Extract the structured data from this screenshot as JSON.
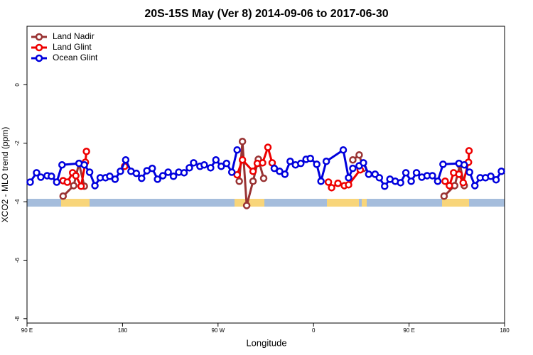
{
  "chart_data": {
    "type": "line",
    "title": "20S-15S May (Ver 8)   2014-09-06 to 2017-06-30",
    "x_label": "Longitude",
    "y_label": "XCO2 - MLO trend (ppm)",
    "xlim": [
      90,
      540
    ],
    "ylim": [
      -8.15,
      2
    ],
    "xticks": [
      {
        "value": 90,
        "label": "90 E"
      },
      {
        "value": 180,
        "label": "180"
      },
      {
        "value": 270,
        "label": "90 W"
      },
      {
        "value": 360,
        "label": "0"
      },
      {
        "value": 450,
        "label": "90 E"
      },
      {
        "value": 540,
        "label": "180"
      }
    ],
    "yticks": [
      0,
      -2,
      -4,
      -6,
      -8
    ],
    "legend": "top-left",
    "series": [
      {
        "name": "Land Nadir",
        "color": "#993333",
        "x": [
          124,
          134,
          139,
          144,
          null,
          290,
          293,
          297,
          303,
          308,
          313,
          null,
          397,
          403,
          407,
          null,
          483,
          493,
          498,
          502
        ],
        "values": [
          -3.81,
          -3.45,
          -2.69,
          -3.47,
          null,
          -3.3,
          -1.94,
          -4.13,
          -3.3,
          -2.55,
          -3.2,
          null,
          -2.57,
          -2.4,
          -2.86,
          null,
          -3.81,
          -3.45,
          -2.74,
          -3.45
        ]
      },
      {
        "name": "Land Glint",
        "color": "#ee0000",
        "x": [
          124,
          128,
          133,
          136,
          141,
          145,
          146,
          null,
          182,
          null,
          288,
          293,
          303,
          307,
          312,
          317,
          321,
          null,
          374,
          377,
          383,
          389,
          393,
          404,
          null,
          484,
          488,
          492,
          497,
          501,
          506,
          506.5
        ],
        "values": [
          -3.28,
          -3.33,
          -3.01,
          -3.11,
          -3.47,
          -2.65,
          -2.28,
          null,
          -2.79,
          null,
          -3.08,
          -2.57,
          -2.96,
          -2.69,
          -2.67,
          -2.14,
          -2.67,
          null,
          -3.33,
          -3.52,
          -3.37,
          -3.45,
          -3.42,
          -2.91,
          null,
          -3.3,
          -3.45,
          -3.01,
          -3.06,
          -3.35,
          -2.65,
          -2.26
        ]
      },
      {
        "name": "Ocean Glint",
        "color": "#0000dd",
        "x": [
          93,
          99,
          103,
          109,
          113,
          118,
          123,
          139,
          144,
          149,
          154,
          159,
          164,
          168,
          173,
          178,
          183,
          188,
          193,
          198,
          203,
          208,
          213,
          218,
          223,
          228,
          233,
          238,
          243,
          247,
          253,
          257,
          263,
          268,
          273,
          278,
          283,
          288,
          null,
          323,
          328,
          333,
          338,
          343,
          348,
          353,
          357,
          363,
          367,
          372,
          388,
          393,
          397,
          403,
          407,
          412,
          418,
          422,
          427,
          432,
          437,
          442,
          447,
          452,
          457,
          462,
          467,
          472,
          477,
          482,
          497,
          502,
          507,
          512,
          517,
          522,
          527,
          532,
          537
        ],
        "values": [
          -3.33,
          -3.01,
          -3.16,
          -3.11,
          -3.13,
          -3.33,
          -2.74,
          -2.69,
          -2.74,
          -2.99,
          -3.45,
          -3.18,
          -3.18,
          -3.13,
          -3.23,
          -2.96,
          -2.57,
          -2.96,
          -3.03,
          -3.2,
          -2.94,
          -2.86,
          -3.23,
          -3.11,
          -2.99,
          -3.13,
          -2.99,
          -3.01,
          -2.84,
          -2.67,
          -2.79,
          -2.74,
          -2.84,
          -2.57,
          -2.79,
          -2.69,
          -2.99,
          -2.23,
          null,
          -2.86,
          -2.96,
          -3.06,
          -2.62,
          -2.74,
          -2.69,
          -2.55,
          -2.52,
          -2.72,
          -3.3,
          -2.62,
          -2.23,
          -3.18,
          -2.86,
          -2.77,
          -2.67,
          -3.06,
          -3.06,
          -3.18,
          -3.47,
          -3.23,
          -3.3,
          -3.35,
          -3.01,
          -3.3,
          -3.01,
          -3.16,
          -3.11,
          -3.11,
          -3.3,
          -2.72,
          -2.69,
          -2.74,
          -2.99,
          -3.45,
          -3.18,
          -3.18,
          -3.13,
          -3.25,
          -2.96
        ]
      }
    ]
  }
}
